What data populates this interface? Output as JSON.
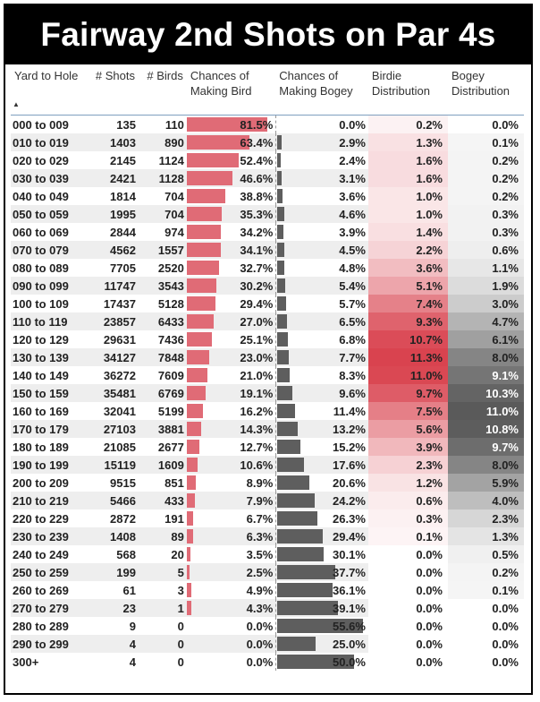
{
  "title": "Fairway 2nd Shots on Par 4s",
  "headers": {
    "yard": "Yard to Hole",
    "shots": "# Shots",
    "birds": "# Birds",
    "bird_chance": [
      "Chances of",
      "Making Bird"
    ],
    "bogey_chance": [
      "Chances of",
      "Making Bogey"
    ],
    "birdie_dist": [
      "Birdie",
      "Distribution"
    ],
    "bogey_dist": [
      "Bogey",
      "Distribution"
    ],
    "sort_indicator": "▲"
  },
  "colors": {
    "bird_bar": "#e06b76",
    "bogey_bar": "#5e5e5e",
    "birdie_heat_max": "#d9434f",
    "bogey_heat_max": "#5a5a5a"
  },
  "chart_data": {
    "type": "table",
    "title": "Fairway 2nd Shots on Par 4s",
    "columns": [
      "Yard to Hole",
      "# Shots",
      "# Birds",
      "Chances of Making Bird",
      "Chances of Making Bogey",
      "Birdie Distribution",
      "Bogey Distribution"
    ],
    "bird_scale_max": 81.5,
    "bogey_scale_max": 55.6,
    "birdie_dist_max": 11.3,
    "bogey_dist_max": 11.0,
    "rows": [
      {
        "yard": "000 to 009",
        "shots": "135",
        "birds": "110",
        "bird": 81.5,
        "bogey": 0.0,
        "bdist": 0.2,
        "bgdist": 0.0
      },
      {
        "yard": "010 to 019",
        "shots": "1403",
        "birds": "890",
        "bird": 63.4,
        "bogey": 2.9,
        "bdist": 1.3,
        "bgdist": 0.1
      },
      {
        "yard": "020 to 029",
        "shots": "2145",
        "birds": "1124",
        "bird": 52.4,
        "bogey": 2.4,
        "bdist": 1.6,
        "bgdist": 0.2
      },
      {
        "yard": "030 to 039",
        "shots": "2421",
        "birds": "1128",
        "bird": 46.6,
        "bogey": 3.1,
        "bdist": 1.6,
        "bgdist": 0.2
      },
      {
        "yard": "040 to 049",
        "shots": "1814",
        "birds": "704",
        "bird": 38.8,
        "bogey": 3.6,
        "bdist": 1.0,
        "bgdist": 0.2
      },
      {
        "yard": "050 to 059",
        "shots": "1995",
        "birds": "704",
        "bird": 35.3,
        "bogey": 4.6,
        "bdist": 1.0,
        "bgdist": 0.3
      },
      {
        "yard": "060 to 069",
        "shots": "2844",
        "birds": "974",
        "bird": 34.2,
        "bogey": 3.9,
        "bdist": 1.4,
        "bgdist": 0.3
      },
      {
        "yard": "070 to 079",
        "shots": "4562",
        "birds": "1557",
        "bird": 34.1,
        "bogey": 4.5,
        "bdist": 2.2,
        "bgdist": 0.6
      },
      {
        "yard": "080 to 089",
        "shots": "7705",
        "birds": "2520",
        "bird": 32.7,
        "bogey": 4.8,
        "bdist": 3.6,
        "bgdist": 1.1
      },
      {
        "yard": "090 to 099",
        "shots": "11747",
        "birds": "3543",
        "bird": 30.2,
        "bogey": 5.4,
        "bdist": 5.1,
        "bgdist": 1.9
      },
      {
        "yard": "100 to 109",
        "shots": "17437",
        "birds": "5128",
        "bird": 29.4,
        "bogey": 5.7,
        "bdist": 7.4,
        "bgdist": 3.0
      },
      {
        "yard": "110 to 119",
        "shots": "23857",
        "birds": "6433",
        "bird": 27.0,
        "bogey": 6.5,
        "bdist": 9.3,
        "bgdist": 4.7
      },
      {
        "yard": "120 to 129",
        "shots": "29631",
        "birds": "7436",
        "bird": 25.1,
        "bogey": 6.8,
        "bdist": 10.7,
        "bgdist": 6.1
      },
      {
        "yard": "130 to 139",
        "shots": "34127",
        "birds": "7848",
        "bird": 23.0,
        "bogey": 7.7,
        "bdist": 11.3,
        "bgdist": 8.0
      },
      {
        "yard": "140 to 149",
        "shots": "36272",
        "birds": "7609",
        "bird": 21.0,
        "bogey": 8.3,
        "bdist": 11.0,
        "bgdist": 9.1
      },
      {
        "yard": "150 to 159",
        "shots": "35481",
        "birds": "6769",
        "bird": 19.1,
        "bogey": 9.6,
        "bdist": 9.7,
        "bgdist": 10.3
      },
      {
        "yard": "160 to 169",
        "shots": "32041",
        "birds": "5199",
        "bird": 16.2,
        "bogey": 11.4,
        "bdist": 7.5,
        "bgdist": 11.0
      },
      {
        "yard": "170 to 179",
        "shots": "27103",
        "birds": "3881",
        "bird": 14.3,
        "bogey": 13.2,
        "bdist": 5.6,
        "bgdist": 10.8
      },
      {
        "yard": "180 to 189",
        "shots": "21085",
        "birds": "2677",
        "bird": 12.7,
        "bogey": 15.2,
        "bdist": 3.9,
        "bgdist": 9.7
      },
      {
        "yard": "190 to 199",
        "shots": "15119",
        "birds": "1609",
        "bird": 10.6,
        "bogey": 17.6,
        "bdist": 2.3,
        "bgdist": 8.0
      },
      {
        "yard": "200 to 209",
        "shots": "9515",
        "birds": "851",
        "bird": 8.9,
        "bogey": 20.6,
        "bdist": 1.2,
        "bgdist": 5.9
      },
      {
        "yard": "210 to 219",
        "shots": "5466",
        "birds": "433",
        "bird": 7.9,
        "bogey": 24.2,
        "bdist": 0.6,
        "bgdist": 4.0
      },
      {
        "yard": "220 to 229",
        "shots": "2872",
        "birds": "191",
        "bird": 6.7,
        "bogey": 26.3,
        "bdist": 0.3,
        "bgdist": 2.3
      },
      {
        "yard": "230 to 239",
        "shots": "1408",
        "birds": "89",
        "bird": 6.3,
        "bogey": 29.4,
        "bdist": 0.1,
        "bgdist": 1.3
      },
      {
        "yard": "240 to 249",
        "shots": "568",
        "birds": "20",
        "bird": 3.5,
        "bogey": 30.1,
        "bdist": 0.0,
        "bgdist": 0.5
      },
      {
        "yard": "250 to 259",
        "shots": "199",
        "birds": "5",
        "bird": 2.5,
        "bogey": 37.7,
        "bdist": 0.0,
        "bgdist": 0.2
      },
      {
        "yard": "260 to 269",
        "shots": "61",
        "birds": "3",
        "bird": 4.9,
        "bogey": 36.1,
        "bdist": 0.0,
        "bgdist": 0.1
      },
      {
        "yard": "270 to 279",
        "shots": "23",
        "birds": "1",
        "bird": 4.3,
        "bogey": 39.1,
        "bdist": 0.0,
        "bgdist": 0.0
      },
      {
        "yard": "280 to 289",
        "shots": "9",
        "birds": "0",
        "bird": 0.0,
        "bogey": 55.6,
        "bdist": 0.0,
        "bgdist": 0.0
      },
      {
        "yard": "290 to 299",
        "shots": "4",
        "birds": "0",
        "bird": 0.0,
        "bogey": 25.0,
        "bdist": 0.0,
        "bgdist": 0.0
      },
      {
        "yard": "300+",
        "shots": "4",
        "birds": "0",
        "bird": 0.0,
        "bogey": 50.0,
        "bdist": 0.0,
        "bgdist": 0.0
      }
    ]
  }
}
